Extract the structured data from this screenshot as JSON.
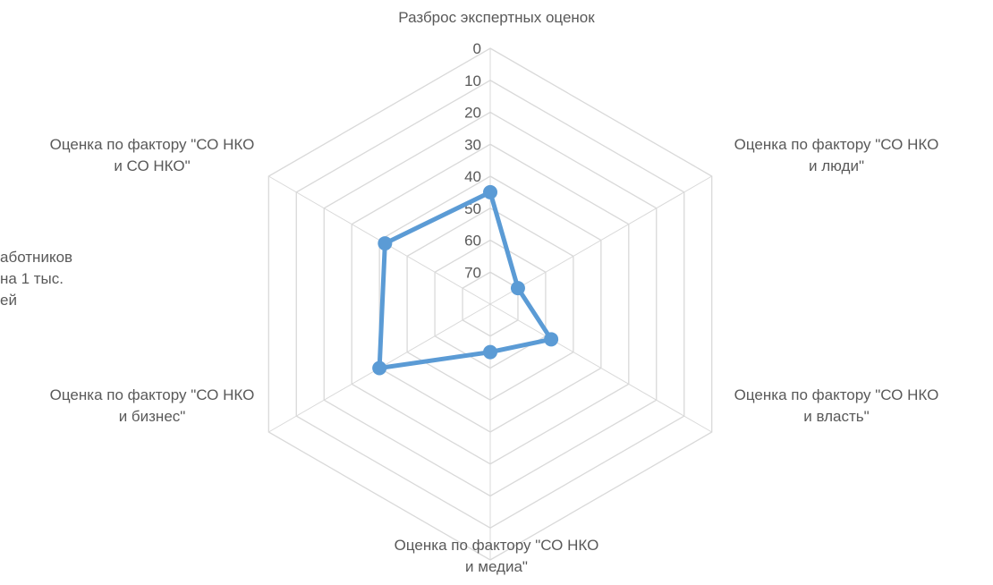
{
  "chart_data": {
    "type": "radar",
    "title": "",
    "categories": [
      "Разброс экспертных оценок",
      "Оценка по фактору \"СО НКО\nи люди\"",
      "Оценка по фактору \"СО НКО\nи власть\"",
      "Оценка по фактору \"СО НКО\nи медиа\"",
      "Оценка по фактору \"СО НКО\nи бизнес\"",
      "Оценка по фактору \"СО НКО\nи СО НКО\""
    ],
    "partial_category_label": "аботников\nна 1 тыс.\nей",
    "series": [
      {
        "values": [
          45,
          70,
          58,
          65,
          40,
          42
        ],
        "color": "#5b9bd5"
      }
    ],
    "radial_axis": {
      "ticks": [
        0,
        10,
        20,
        30,
        40,
        50,
        60,
        70
      ],
      "tick_labels": [
        "0",
        "10",
        "20",
        "30",
        "40",
        "50",
        "60",
        "70"
      ],
      "range": [
        0,
        80
      ],
      "reversed": true
    },
    "grid": true,
    "legend": "none",
    "colors": {
      "series_line": "#5b9bd5",
      "grid_line": "#d9d9d9",
      "label_text": "#595959"
    }
  }
}
